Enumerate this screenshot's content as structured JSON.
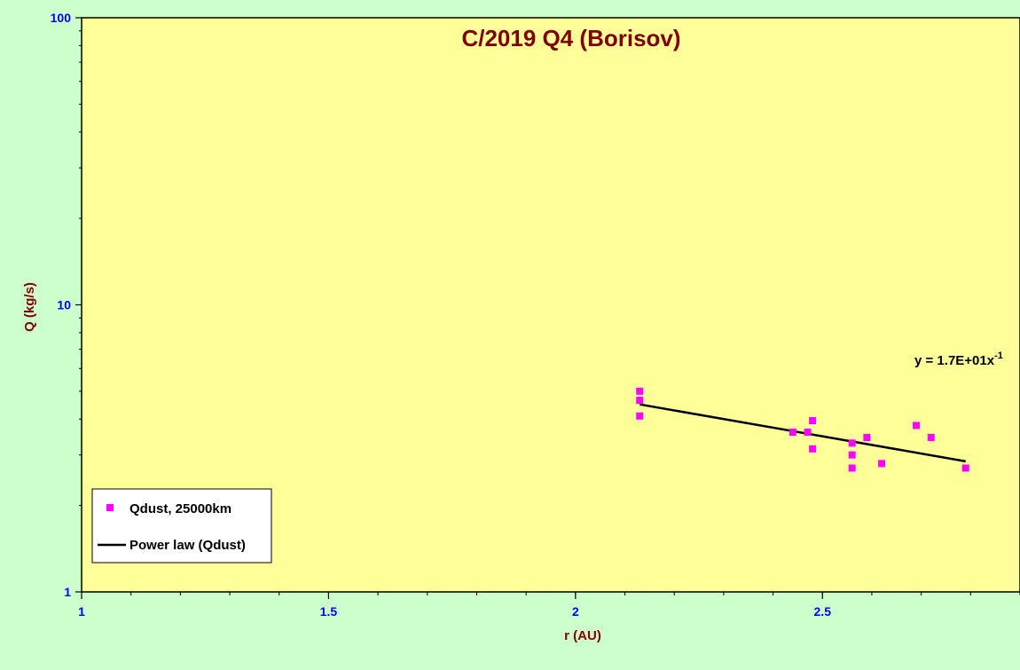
{
  "colors": {
    "page_background": "#ccffcc",
    "plot_background": "#ffff99",
    "title": "#800000",
    "axis_title": "#800000",
    "tick_label": "#0000ff",
    "marker": "#ff00ff",
    "fit_line": "#000000"
  },
  "chart_data": {
    "type": "scatter",
    "title": "C/2019 Q4 (Borisov)",
    "xlabel": "r (AU)",
    "ylabel": "Q (kg/s)",
    "xlim": [
      1,
      2.9
    ],
    "ylim": [
      1,
      100
    ],
    "yscale": "log",
    "x_ticks": [
      1,
      1.5,
      2,
      2.5
    ],
    "x_tick_labels": [
      "1",
      "1.5",
      "2",
      "2.5"
    ],
    "y_ticks": [
      1,
      10,
      100
    ],
    "y_tick_labels": [
      "1",
      "10",
      "100"
    ],
    "grid": false,
    "legend_position": "bottom-left",
    "series": [
      {
        "name": "Qdust, 25000km",
        "marker": "square",
        "color": "#ff00ff",
        "points": [
          [
            2.13,
            5.0
          ],
          [
            2.13,
            4.65
          ],
          [
            2.13,
            4.1
          ],
          [
            2.44,
            3.6
          ],
          [
            2.47,
            3.6
          ],
          [
            2.48,
            3.95
          ],
          [
            2.48,
            3.15
          ],
          [
            2.56,
            3.3
          ],
          [
            2.56,
            3.0
          ],
          [
            2.56,
            2.7
          ],
          [
            2.59,
            3.45
          ],
          [
            2.62,
            2.8
          ],
          [
            2.69,
            3.8
          ],
          [
            2.72,
            3.45
          ],
          [
            2.79,
            2.7
          ]
        ]
      },
      {
        "name": "Power law (Qdust)",
        "type": "fit-line",
        "color": "#000000",
        "x_range": [
          2.13,
          2.79
        ],
        "y_values": [
          4.5,
          2.85
        ]
      }
    ],
    "annotation": {
      "text": "y = 1.7E+01x",
      "superscript": "-1"
    }
  }
}
